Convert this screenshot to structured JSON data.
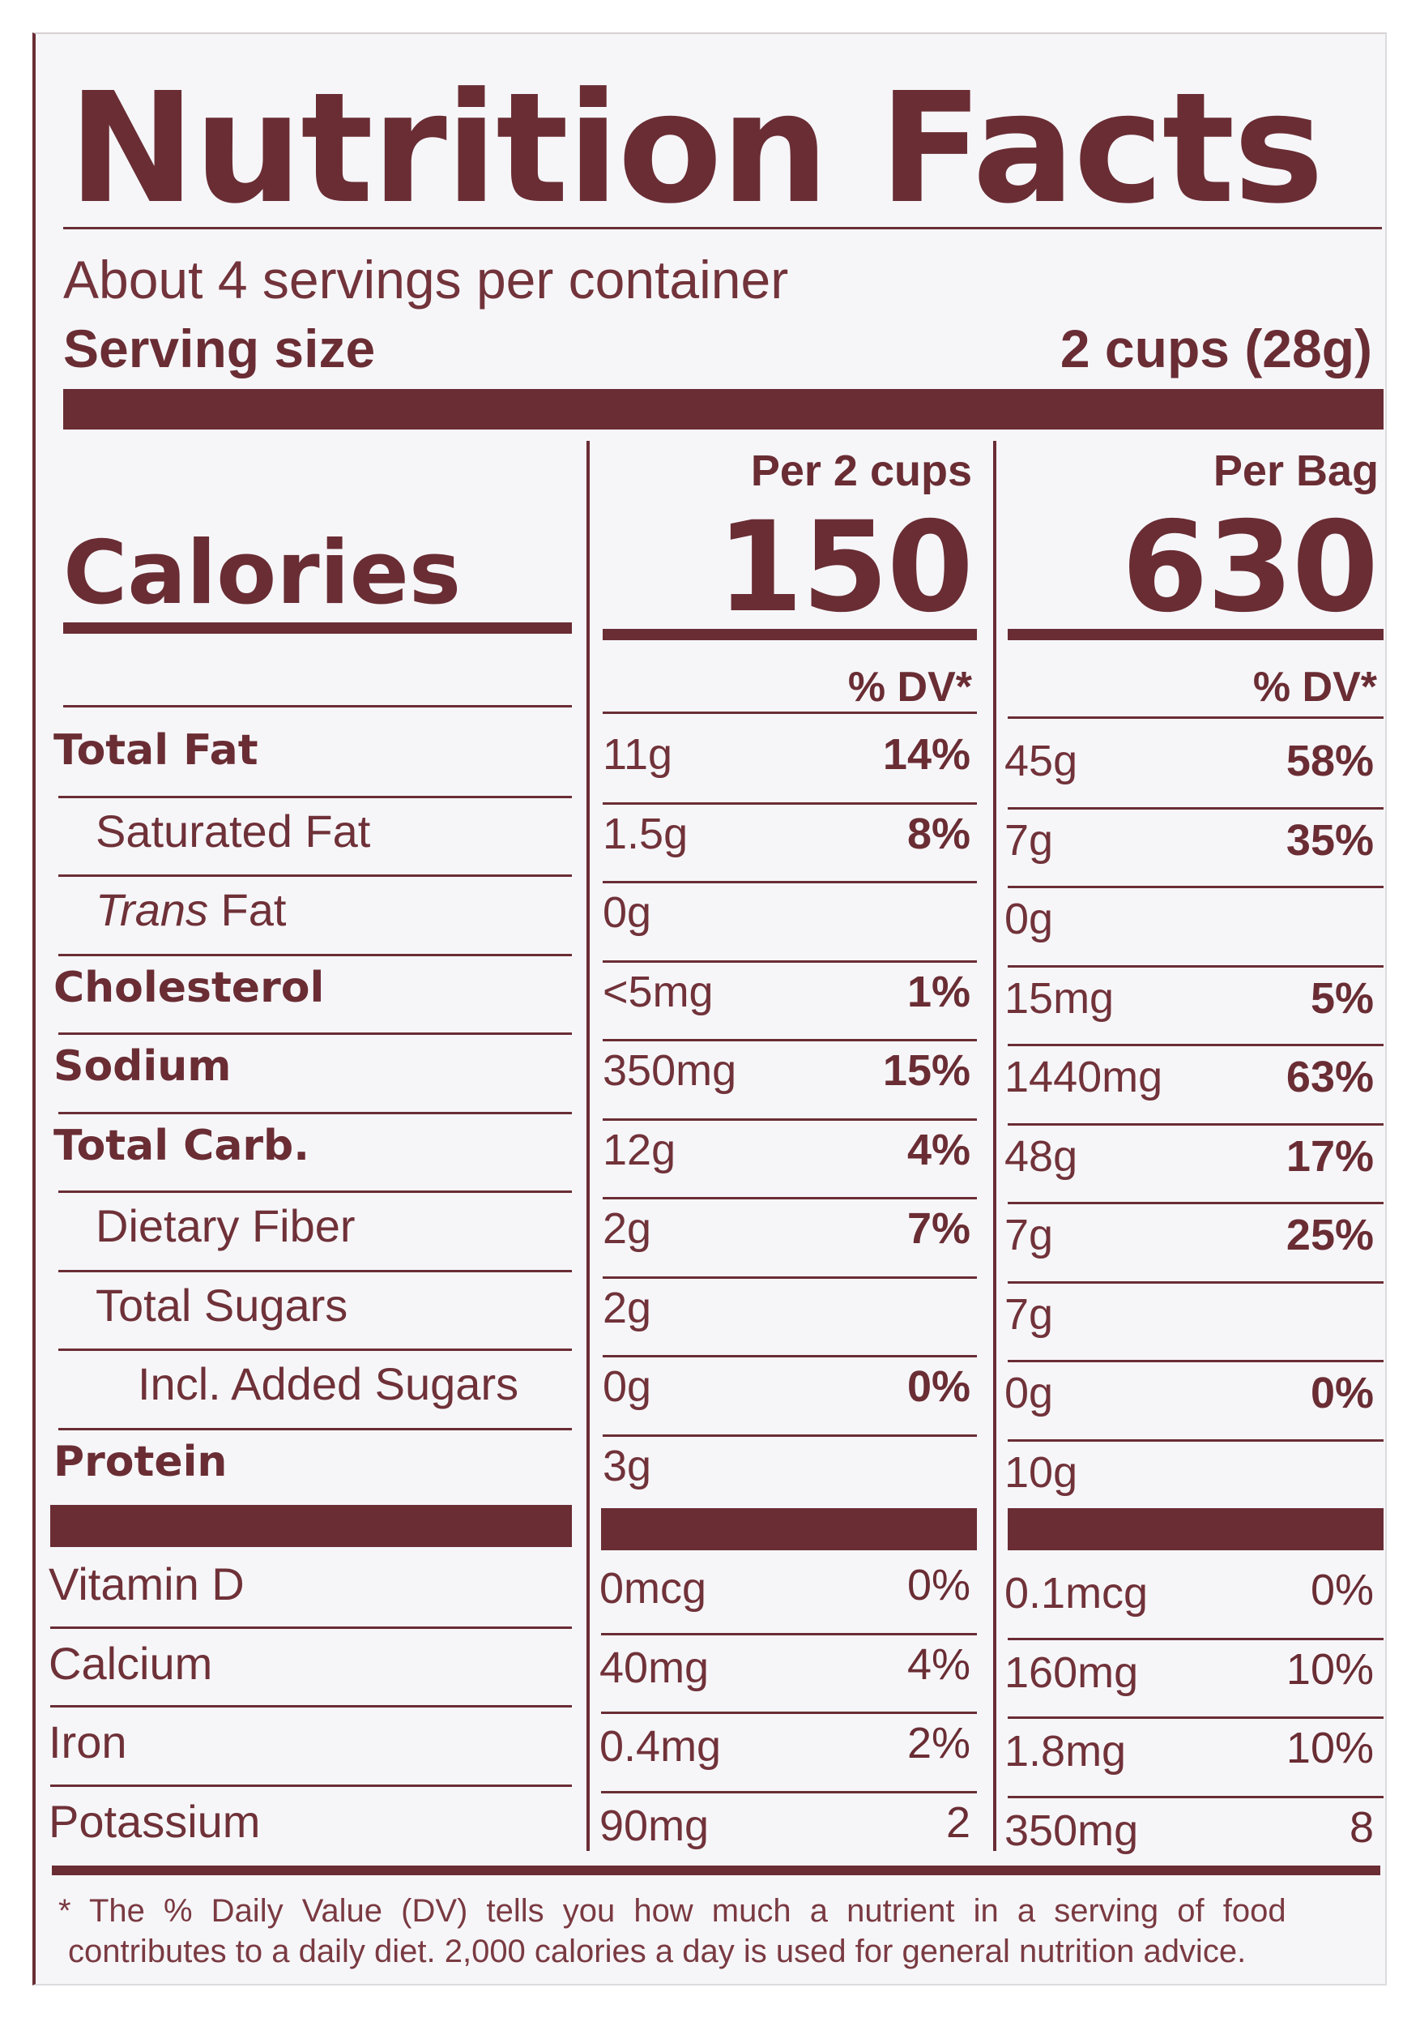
{
  "title": "Nutrition Facts",
  "servings_per_container": "About 4 servings per container",
  "serving_size_label": "Serving size",
  "serving_size_value": "2 cups (28g)",
  "columns": [
    {
      "heading": "Per 2 cups",
      "calories": "150",
      "dv_label": "% DV*"
    },
    {
      "heading": "Per Bag",
      "calories": "630",
      "dv_label": "% DV*"
    }
  ],
  "calories_label": "Calories",
  "nutrients": [
    {
      "name": "Total Fat",
      "bold": true,
      "indent": 0,
      "c1_amount": "11g",
      "c1_dv": "14%",
      "c2_amount": "45g",
      "c2_dv": "58%"
    },
    {
      "name": "Saturated Fat",
      "bold": false,
      "indent": 1,
      "c1_amount": "1.5g",
      "c1_dv": "8%",
      "c2_amount": "7g",
      "c2_dv": "35%"
    },
    {
      "name": "Trans Fat",
      "name_italic_part": "Trans",
      "name_rest": " Fat",
      "bold": false,
      "indent": 1,
      "c1_amount": "0g",
      "c1_dv": "",
      "c2_amount": "0g",
      "c2_dv": ""
    },
    {
      "name": "Cholesterol",
      "bold": true,
      "indent": 0,
      "c1_amount": "<5mg",
      "c1_dv": "1%",
      "c2_amount": "15mg",
      "c2_dv": "5%"
    },
    {
      "name": "Sodium",
      "bold": true,
      "indent": 0,
      "c1_amount": "350mg",
      "c1_dv": "15%",
      "c2_amount": "1440mg",
      "c2_dv": "63%"
    },
    {
      "name": "Total Carb.",
      "bold": true,
      "indent": 0,
      "c1_amount": "12g",
      "c1_dv": "4%",
      "c2_amount": "48g",
      "c2_dv": "17%"
    },
    {
      "name": "Dietary Fiber",
      "bold": false,
      "indent": 1,
      "c1_amount": "2g",
      "c1_dv": "7%",
      "c2_amount": "7g",
      "c2_dv": "25%"
    },
    {
      "name": "Total Sugars",
      "bold": false,
      "indent": 1,
      "c1_amount": "2g",
      "c1_dv": "",
      "c2_amount": "7g",
      "c2_dv": ""
    },
    {
      "name": "Incl. Added Sugars",
      "bold": false,
      "indent": 2,
      "c1_amount": "0g",
      "c1_dv": "0%",
      "c2_amount": "0g",
      "c2_dv": "0%"
    },
    {
      "name": "Protein",
      "bold": true,
      "indent": 0,
      "c1_amount": "3g",
      "c1_dv": "",
      "c2_amount": "10g",
      "c2_dv": ""
    }
  ],
  "vitamins": [
    {
      "name": "Vitamin D",
      "c1_amount": "0mcg",
      "c1_dv": "0%",
      "c2_amount": "0.1mcg",
      "c2_dv": "0%"
    },
    {
      "name": "Calcium",
      "c1_amount": "40mg",
      "c1_dv": "4%",
      "c2_amount": "160mg",
      "c2_dv": "10%"
    },
    {
      "name": "Iron",
      "c1_amount": "0.4mg",
      "c1_dv": "2%",
      "c2_amount": "1.8mg",
      "c2_dv": "10%"
    },
    {
      "name": "Potassium",
      "c1_amount": "90mg",
      "c1_dv": "2",
      "c2_amount": "350mg",
      "c2_dv": "8"
    }
  ],
  "footnote_line1": "* The % Daily Value (DV) tells you how much a nutrient in a serving of food",
  "footnote_line2": "contributes to a daily diet. 2,000 calories a day is used for general nutrition advice.",
  "colors": {
    "ink": "#6a2d34",
    "background": "#f6f6f9"
  }
}
